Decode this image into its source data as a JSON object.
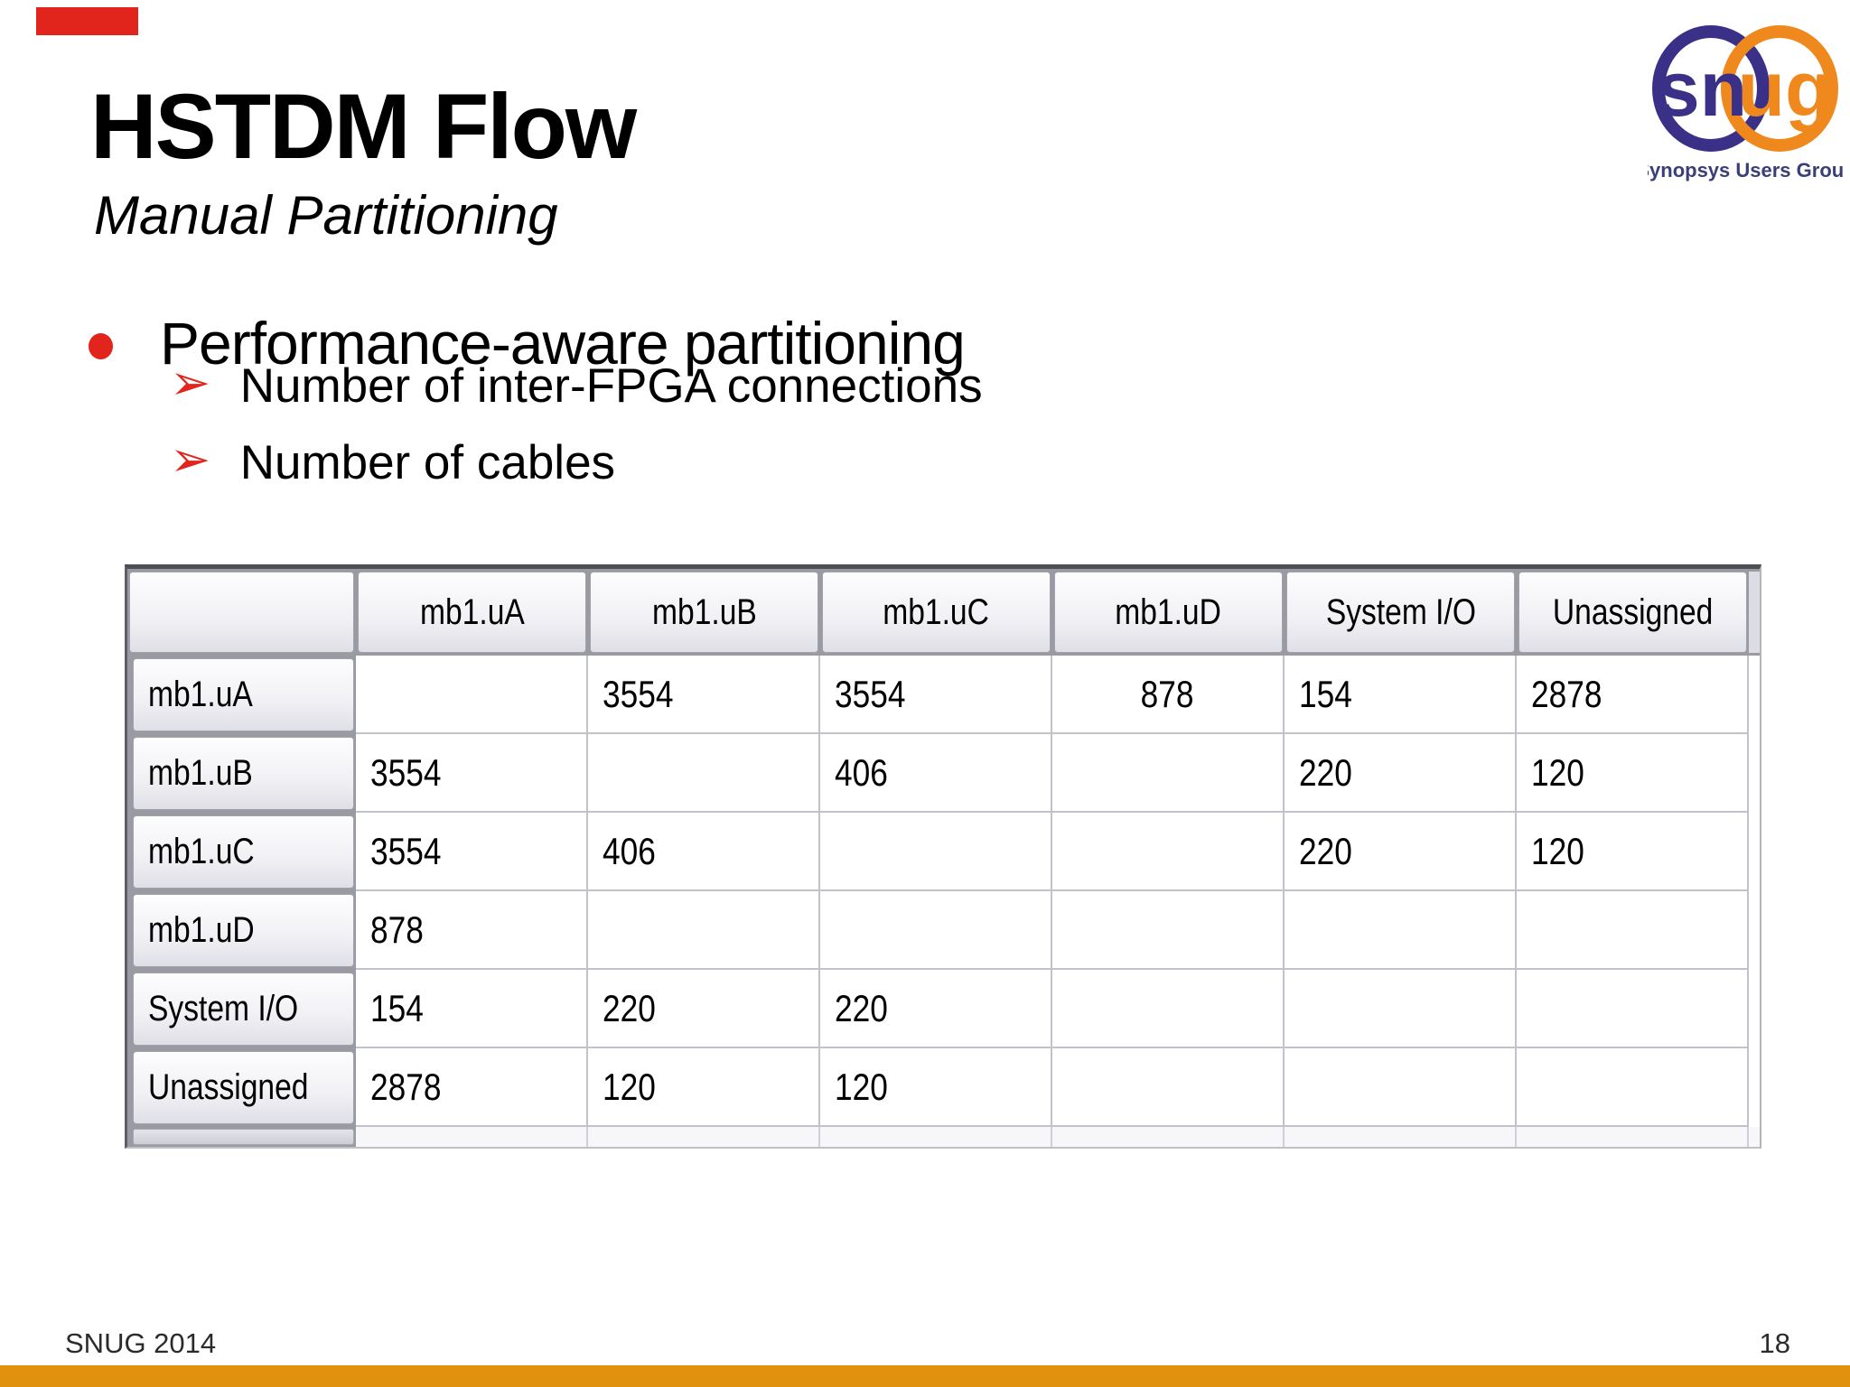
{
  "colors": {
    "accent_red": "#E2251C",
    "footer_bar_orange": "#E0920E",
    "logo_navy": "#3A3088",
    "logo_orange": "#F0891D",
    "logo_caption_navy": "#3A4077"
  },
  "header": {
    "title": "HSTDM Flow",
    "subtitle": "Manual Partitioning"
  },
  "logo": {
    "sn": "sn",
    "ug": "ug",
    "caption": "Synopsys Users Group"
  },
  "content": {
    "bullet": "Performance-aware partitioning",
    "arrow_marker": "➢",
    "sub_bullets": [
      "Number of inter-FPGA connections",
      "Number of cables"
    ]
  },
  "table": {
    "columns": [
      "",
      "mb1.uA",
      "mb1.uB",
      "mb1.uC",
      "mb1.uD",
      "System I/O",
      "Unassigned"
    ],
    "rows": [
      {
        "header": "mb1.uA",
        "cells": [
          "",
          "3554",
          "3554",
          "878",
          "154",
          "2878"
        ]
      },
      {
        "header": "mb1.uB",
        "cells": [
          "3554",
          "",
          "406",
          "",
          "220",
          "120"
        ]
      },
      {
        "header": "mb1.uC",
        "cells": [
          "3554",
          "406",
          "",
          "",
          "220",
          "120"
        ]
      },
      {
        "header": "mb1.uD",
        "cells": [
          "878",
          "",
          "",
          "",
          "",
          ""
        ]
      },
      {
        "header": "System I/O",
        "cells": [
          "154",
          "220",
          "220",
          "",
          "",
          ""
        ]
      },
      {
        "header": "Unassigned",
        "cells": [
          "2878",
          "120",
          "120",
          "",
          "",
          ""
        ]
      }
    ],
    "centered_cells": [
      [
        0,
        3
      ]
    ]
  },
  "footer": {
    "left": "SNUG 2014",
    "page": "18"
  }
}
